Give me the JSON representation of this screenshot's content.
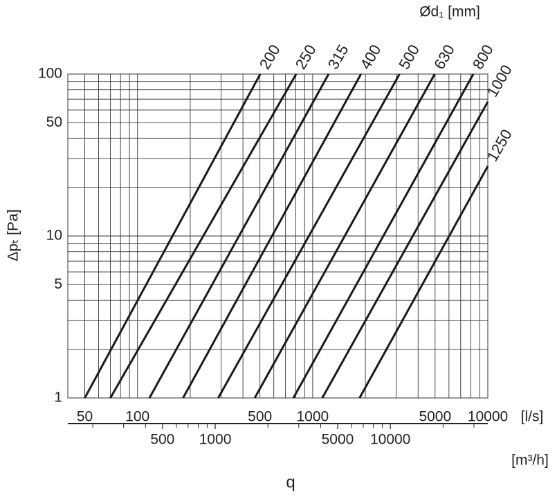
{
  "chart_data": {
    "type": "line",
    "log_x": true,
    "log_y": true,
    "grid": true,
    "color": "#1a1a1a",
    "legend_title": "Ød₁ [mm]",
    "y_label": "Δpₜ [Pa]",
    "x_unit": "[l/s]",
    "x2_unit": "[m³/h]",
    "x_label": "q",
    "xlim": [
      40,
      10000
    ],
    "ylim": [
      1,
      100
    ],
    "xticks": [
      50,
      100,
      500,
      1000,
      5000,
      10000
    ],
    "yticks": [
      1,
      5,
      10,
      50,
      100
    ],
    "xgrid": [
      50,
      60,
      70,
      80,
      90,
      100,
      200,
      300,
      400,
      500,
      600,
      700,
      800,
      900,
      1000,
      2000,
      3000,
      4000,
      5000,
      6000,
      7000,
      8000,
      9000,
      10000
    ],
    "ygrid": [
      1,
      2,
      3,
      4,
      5,
      6,
      7,
      8,
      9,
      10,
      20,
      30,
      40,
      50,
      60,
      70,
      80,
      90,
      100
    ],
    "x2lim": [
      144,
      36000
    ],
    "x2ticks": [
      500,
      1000,
      5000,
      10000
    ],
    "x2minor": [
      200,
      300,
      400,
      600,
      700,
      800,
      900,
      2000,
      3000,
      4000,
      6000,
      7000,
      8000,
      9000,
      20000,
      30000
    ],
    "series": [
      {
        "name": "200",
        "x": [
          50,
          502
        ],
        "values": [
          1,
          100
        ]
      },
      {
        "name": "250",
        "x": [
          70,
          805
        ],
        "values": [
          1,
          100
        ]
      },
      {
        "name": "315",
        "x": [
          117,
          1233
        ],
        "values": [
          1,
          100
        ]
      },
      {
        "name": "400",
        "x": [
          182,
          1887
        ],
        "values": [
          1,
          100
        ]
      },
      {
        "name": "500",
        "x": [
          289,
          3133
        ],
        "values": [
          1,
          100
        ]
      },
      {
        "name": "630",
        "x": [
          467,
          4977
        ],
        "values": [
          1,
          100
        ]
      },
      {
        "name": "800",
        "x": [
          776,
          8267
        ],
        "values": [
          1,
          100
        ]
      },
      {
        "name": "1000",
        "x": [
          1135,
          10000
        ],
        "values": [
          1,
          67.5
        ]
      },
      {
        "name": "1250",
        "x": [
          1853,
          10000
        ],
        "values": [
          1,
          27
        ]
      }
    ]
  }
}
